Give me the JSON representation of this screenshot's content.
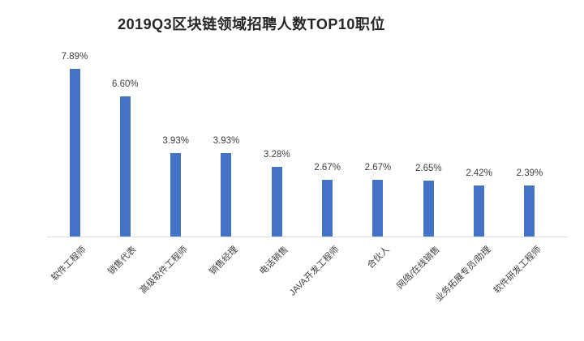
{
  "chart_data": {
    "type": "bar",
    "title": "2019Q3区块链领域招聘人数TOP10职位",
    "categories": [
      "软件工程师",
      "销售代表",
      "高级软件工程师",
      "销售经理",
      "电话销售",
      "JAVA开发工程师",
      "合伙人",
      "网络/在线销售",
      "业务拓展专员/助理",
      "软件研发工程师"
    ],
    "values": [
      7.89,
      6.6,
      3.93,
      3.93,
      3.28,
      2.67,
      2.67,
      2.65,
      2.42,
      2.39
    ],
    "value_labels": [
      "7.89%",
      "6.60%",
      "3.93%",
      "3.93%",
      "3.28%",
      "2.67%",
      "2.67%",
      "2.65%",
      "2.42%",
      "2.39%"
    ],
    "xlabel": "",
    "ylabel": "",
    "ylim": [
      0,
      8.5
    ],
    "grid": false,
    "legend": "none",
    "bar_color": "#4472C4",
    "axis_line_color": "#DCDCDC",
    "title_color": "#262626",
    "label_color": "#404040"
  }
}
